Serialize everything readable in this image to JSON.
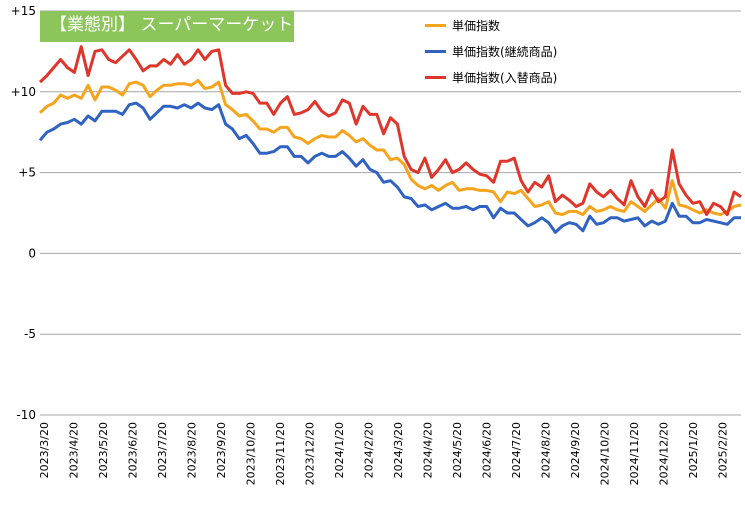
{
  "chart_data": {
    "type": "line",
    "title": "【業態別】 スーパーマーケット",
    "ylim": [
      -10,
      15
    ],
    "yticks": [
      {
        "value": 15,
        "label": "+15"
      },
      {
        "value": 10,
        "label": "+10"
      },
      {
        "value": 5,
        "label": "+5"
      },
      {
        "value": 0,
        "label": "0"
      },
      {
        "value": -5,
        "label": "-5"
      },
      {
        "value": -10,
        "label": "-10"
      }
    ],
    "xticks": [
      "2023/3/20",
      "2023/4/20",
      "2023/5/20",
      "2023/6/20",
      "2023/7/20",
      "2023/8/20",
      "2023/9/20",
      "2023/10/20",
      "2023/11/20",
      "2023/12/20",
      "2024/1/20",
      "2024/2/20",
      "2024/3/20",
      "2024/4/20",
      "2024/5/20",
      "2024/6/20",
      "2024/7/20",
      "2024/8/20",
      "2024/9/20",
      "2024/10/20",
      "2024/11/20",
      "2024/12/20",
      "2025/1/20",
      "2025/2/20"
    ],
    "grid": "horizontal",
    "legend_position": "top-right",
    "series": [
      {
        "name": "単価指数",
        "color": "#f7a41d",
        "values": [
          8.7,
          9.1,
          9.3,
          9.8,
          9.6,
          9.8,
          9.6,
          10.4,
          9.5,
          10.3,
          10.3,
          10.1,
          9.8,
          10.5,
          10.6,
          10.4,
          9.7,
          10.1,
          10.4,
          10.4,
          10.5,
          10.5,
          10.4,
          10.7,
          10.2,
          10.3,
          10.6,
          9.2,
          8.9,
          8.5,
          8.6,
          8.2,
          7.7,
          7.7,
          7.5,
          7.8,
          7.8,
          7.2,
          7.1,
          6.8,
          7.1,
          7.3,
          7.2,
          7.2,
          7.6,
          7.3,
          6.9,
          7.1,
          6.7,
          6.4,
          6.4,
          5.8,
          5.9,
          5.5,
          4.6,
          4.2,
          4.0,
          4.2,
          3.9,
          4.2,
          4.4,
          3.9,
          4.0,
          4.0,
          3.9,
          3.9,
          3.8,
          3.2,
          3.8,
          3.7,
          3.9,
          3.4,
          2.9,
          3.0,
          3.2,
          2.5,
          2.4,
          2.6,
          2.6,
          2.4,
          2.9,
          2.6,
          2.7,
          2.9,
          2.7,
          2.6,
          3.2,
          2.9,
          2.6,
          3.0,
          3.4,
          2.8,
          4.5,
          3.0,
          2.9,
          2.7,
          2.5,
          2.7,
          2.5,
          2.4,
          2.6,
          2.9,
          3.0
        ],
        "_note": "weekly observations"
      },
      {
        "name": "単価指数(継続商品)",
        "color": "#2f62c1",
        "values": [
          7.0,
          7.5,
          7.7,
          8.0,
          8.1,
          8.3,
          8.0,
          8.5,
          8.2,
          8.8,
          8.8,
          8.8,
          8.6,
          9.2,
          9.3,
          9.0,
          8.3,
          8.7,
          9.1,
          9.1,
          9.0,
          9.2,
          9.0,
          9.3,
          9.0,
          8.9,
          9.2,
          8.0,
          7.7,
          7.1,
          7.3,
          6.8,
          6.2,
          6.2,
          6.3,
          6.6,
          6.6,
          6.0,
          6.0,
          5.6,
          6.0,
          6.2,
          6.0,
          6.0,
          6.3,
          5.9,
          5.4,
          5.8,
          5.2,
          5.0,
          4.4,
          4.5,
          4.1,
          3.5,
          3.4,
          2.9,
          3.0,
          2.7,
          2.9,
          3.1,
          2.8,
          2.8,
          2.9,
          2.7,
          2.9,
          2.9,
          2.2,
          2.8,
          2.5,
          2.5,
          2.1,
          1.7,
          1.9,
          2.2,
          1.9,
          1.3,
          1.7,
          1.9,
          1.8,
          1.4,
          2.3,
          1.8,
          1.9,
          2.2,
          2.2,
          2.0,
          2.1,
          2.2,
          1.7,
          2.0,
          1.8,
          2.0,
          3.1,
          2.3,
          2.3,
          1.9,
          1.9,
          2.1,
          2.0,
          1.9,
          1.8,
          2.2,
          2.2
        ]
      },
      {
        "name": "単価指数(入替商品)",
        "color": "#e0352b",
        "values": [
          10.6,
          11.0,
          11.5,
          12.0,
          11.5,
          11.2,
          12.8,
          11.0,
          12.5,
          12.6,
          12.0,
          11.8,
          12.2,
          12.6,
          12.0,
          11.3,
          11.6,
          11.6,
          12.0,
          11.7,
          12.3,
          11.7,
          12.0,
          12.6,
          12.0,
          12.5,
          12.6,
          10.4,
          9.9,
          9.9,
          10.0,
          9.9,
          9.3,
          9.3,
          8.6,
          9.3,
          9.7,
          8.6,
          8.7,
          8.9,
          9.4,
          8.8,
          8.5,
          8.7,
          9.5,
          9.3,
          8.0,
          9.1,
          8.6,
          8.6,
          7.4,
          8.4,
          8.0,
          6.0,
          5.2,
          5.0,
          5.9,
          4.7,
          5.2,
          5.8,
          5.0,
          5.2,
          5.6,
          5.2,
          4.9,
          4.8,
          4.4,
          5.7,
          5.7,
          5.9,
          4.5,
          3.8,
          4.4,
          4.1,
          4.8,
          3.2,
          3.6,
          3.3,
          2.9,
          3.1,
          4.3,
          3.8,
          3.5,
          3.9,
          3.4,
          3.0,
          4.5,
          3.5,
          2.9,
          3.9,
          3.2,
          3.5,
          6.4,
          4.3,
          3.6,
          3.1,
          3.2,
          2.4,
          3.1,
          2.9,
          2.4,
          3.8,
          3.5
        ]
      }
    ]
  }
}
